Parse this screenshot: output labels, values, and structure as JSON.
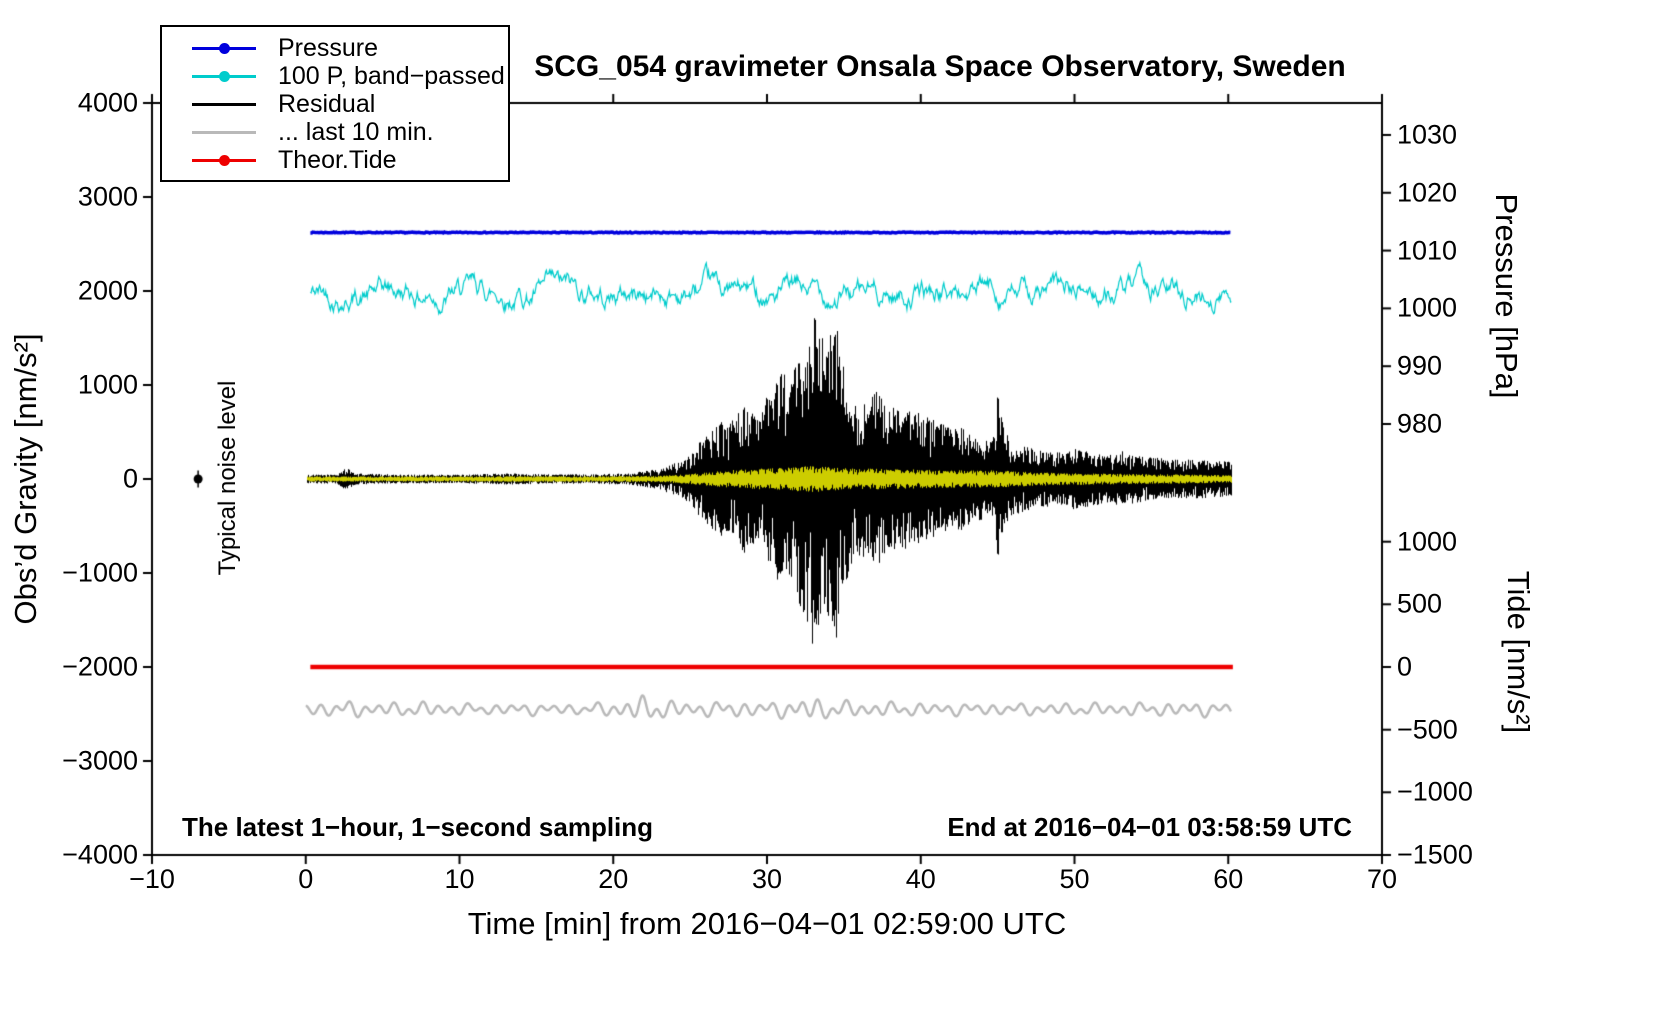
{
  "title": "SCG_054 gravimeter Onsala Space Observatory, Sweden",
  "annotations": {
    "sampling_note": "The latest 1−hour, 1−second sampling",
    "end_note": "End at 2016−04−01 03:58:59 UTC",
    "noise_label": "Typical noise level"
  },
  "legend": {
    "entries": [
      {
        "label": "Pressure",
        "color": "#0000dd",
        "dot": true
      },
      {
        "label": "100 P, band−passed",
        "color": "#00cccc",
        "dot": true
      },
      {
        "label": "Residual",
        "color": "#000000",
        "dot": false
      },
      {
        "label": "... last 10 min.",
        "color": "#b9b9b9",
        "dot": false
      },
      {
        "label": "Theor.Tide",
        "color": "#ee0000",
        "dot": true
      }
    ]
  },
  "chart_data": {
    "type": "line",
    "title": "SCG_054 gravimeter Onsala Space Observatory, Sweden",
    "grid": false,
    "legend_position": "top-left",
    "axes": {
      "x": {
        "label": "Time [min] from 2016−04−01 02:59:00 UTC",
        "min": -10,
        "max": 70,
        "ticks": [
          {
            "label": "−10",
            "value": -10
          },
          {
            "label": "0",
            "value": 0
          },
          {
            "label": "10",
            "value": 10
          },
          {
            "label": "20",
            "value": 20
          },
          {
            "label": "30",
            "value": 30
          },
          {
            "label": "40",
            "value": 40
          },
          {
            "label": "50",
            "value": 50
          },
          {
            "label": "60",
            "value": 60
          },
          {
            "label": "70",
            "value": 70
          }
        ]
      },
      "left": {
        "label": "Obs’d Gravity [nm/s²]",
        "min": -4000,
        "max": 4000,
        "ticks": [
          {
            "label": "4000",
            "value": 4000
          },
          {
            "label": "3000",
            "value": 3000
          },
          {
            "label": "2000",
            "value": 2000
          },
          {
            "label": "1000",
            "value": 1000
          },
          {
            "label": "0",
            "value": 0
          },
          {
            "label": "−1000",
            "value": -1000
          },
          {
            "label": "−2000",
            "value": -2000
          },
          {
            "label": "−3000",
            "value": -3000
          },
          {
            "label": "−4000",
            "value": -4000
          }
        ]
      },
      "right_pressure": {
        "label": "Pressure [hPa]",
        "ticks": [
          {
            "label": "1030",
            "value_hpa": 1030,
            "gravity": 3660
          },
          {
            "label": "1020",
            "value_hpa": 1020,
            "gravity": 3045
          },
          {
            "label": "1010",
            "value_hpa": 1010,
            "gravity": 2430
          },
          {
            "label": "1000",
            "value_hpa": 1000,
            "gravity": 1815
          },
          {
            "label": "990",
            "value_hpa": 990,
            "gravity": 1200
          },
          {
            "label": "980",
            "value_hpa": 980,
            "gravity": 585
          }
        ]
      },
      "right_tide": {
        "label": "Tide [nm/s²]",
        "ticks": [
          {
            "label": "1000",
            "value_tide": 1000,
            "gravity": -667
          },
          {
            "label": "500",
            "value_tide": 500,
            "gravity": -1333
          },
          {
            "label": "0",
            "value_tide": 0,
            "gravity": -2000
          },
          {
            "label": "−500",
            "value_tide": -500,
            "gravity": -2667
          },
          {
            "label": "−1000",
            "value_tide": -1000,
            "gravity": -3333
          },
          {
            "label": "−1500",
            "value_tide": -1500,
            "gravity": -4000
          }
        ]
      }
    },
    "noise_marker": {
      "x": -7,
      "gravity": 0,
      "whisker": 90
    },
    "series": [
      {
        "id": "pressure",
        "label": "Pressure",
        "color": "#0000dd",
        "line_width": 3.5,
        "baseline_gravity": 2622,
        "approx_value_hpa": 1013,
        "noise_amp": 10,
        "x_start": 0.3,
        "x_end": 60.2
      },
      {
        "id": "pressure_bandpassed",
        "label": "100 P, band−passed",
        "color": "#00cccc",
        "line_width": 1.2,
        "baseline_gravity": 1975,
        "typical_amp": 100,
        "spike_amp": 300,
        "x_start": 0.3,
        "x_end": 60.2
      },
      {
        "id": "residual",
        "label": "Residual",
        "color": "#000000",
        "line_width": 1,
        "baseline_gravity": 0,
        "background_noise": 38,
        "x_start": 0.1,
        "x_end": 60.2,
        "envelope": [
          [
            0,
            45
          ],
          [
            2,
            50
          ],
          [
            2.6,
            120
          ],
          [
            3.2,
            60
          ],
          [
            6,
            48
          ],
          [
            10,
            46
          ],
          [
            13,
            60
          ],
          [
            16,
            50
          ],
          [
            19,
            52
          ],
          [
            21,
            65
          ],
          [
            22,
            85
          ],
          [
            23,
            120
          ],
          [
            24,
            170
          ],
          [
            25,
            260
          ],
          [
            25.5,
            380
          ],
          [
            26,
            480
          ],
          [
            26.5,
            560
          ],
          [
            27,
            620
          ],
          [
            27.5,
            570
          ],
          [
            28,
            700
          ],
          [
            28.5,
            800
          ],
          [
            29,
            710
          ],
          [
            29.5,
            660
          ],
          [
            30,
            900
          ],
          [
            30.5,
            1050
          ],
          [
            31,
            1200
          ],
          [
            31.5,
            1020
          ],
          [
            32,
            1300
          ],
          [
            32.5,
            1500
          ],
          [
            33,
            1800
          ],
          [
            33.4,
            1580
          ],
          [
            33.8,
            1420
          ],
          [
            34.2,
            1600
          ],
          [
            34.6,
            1750
          ],
          [
            35,
            1150
          ],
          [
            35.5,
            950
          ],
          [
            36,
            860
          ],
          [
            36.5,
            800
          ],
          [
            37,
            950
          ],
          [
            37.5,
            860
          ],
          [
            38,
            800
          ],
          [
            38.6,
            710
          ],
          [
            39,
            760
          ],
          [
            39.6,
            700
          ],
          [
            40,
            720
          ],
          [
            40.6,
            650
          ],
          [
            41.2,
            600
          ],
          [
            42,
            530
          ],
          [
            42.6,
            560
          ],
          [
            43.2,
            480
          ],
          [
            44,
            430
          ],
          [
            44.6,
            400
          ],
          [
            45,
            920
          ],
          [
            45.4,
            520
          ],
          [
            46,
            390
          ],
          [
            46.6,
            350
          ],
          [
            47.2,
            330
          ],
          [
            48,
            305
          ],
          [
            49,
            285
          ],
          [
            50,
            330
          ],
          [
            50.6,
            300
          ],
          [
            51.4,
            280
          ],
          [
            52.2,
            255
          ],
          [
            53,
            300
          ],
          [
            53.8,
            260
          ],
          [
            54.6,
            240
          ],
          [
            55.4,
            225
          ],
          [
            56.2,
            210
          ],
          [
            57,
            205
          ],
          [
            58,
            210
          ],
          [
            59,
            195
          ],
          [
            60,
            185
          ]
        ]
      },
      {
        "id": "residual_smoothed",
        "label": "band-passed residual (yellow overlay)",
        "color": "#cdcd00",
        "line_width": 1,
        "baseline_gravity": 0,
        "x_start": 0.1,
        "x_end": 60.2,
        "envelope": [
          [
            0,
            28
          ],
          [
            20,
            30
          ],
          [
            23,
            35
          ],
          [
            25,
            55
          ],
          [
            26,
            70
          ],
          [
            27,
            85
          ],
          [
            28,
            100
          ],
          [
            29,
            105
          ],
          [
            30,
            115
          ],
          [
            31,
            120
          ],
          [
            32,
            130
          ],
          [
            33,
            140
          ],
          [
            34,
            130
          ],
          [
            35,
            120
          ],
          [
            36,
            112
          ],
          [
            37,
            110
          ],
          [
            38,
            106
          ],
          [
            39,
            103
          ],
          [
            40,
            100
          ],
          [
            41,
            97
          ],
          [
            42,
            94
          ],
          [
            43,
            92
          ],
          [
            44,
            90
          ],
          [
            45,
            96
          ],
          [
            46,
            82
          ],
          [
            47,
            75
          ],
          [
            48,
            70
          ],
          [
            49,
            67
          ],
          [
            50,
            64
          ],
          [
            51,
            61
          ],
          [
            52,
            58
          ],
          [
            53,
            56
          ],
          [
            54,
            54
          ],
          [
            55,
            52
          ],
          [
            56,
            50
          ],
          [
            57,
            48
          ],
          [
            58,
            46
          ],
          [
            59,
            43
          ],
          [
            60,
            40
          ]
        ]
      },
      {
        "id": "theor_tide",
        "label": "Theor.Tide",
        "color": "#ee0000",
        "line_width": 4.5,
        "baseline_gravity": -2000,
        "tide_value": 0,
        "x_start": 0.3,
        "x_end": 60.3
      },
      {
        "id": "residual_last10",
        "label": "... last 10 min.",
        "color": "#b9b9b9",
        "line_width": 2.5,
        "baseline_gravity": -2450,
        "periods_min": [
          0.95,
          1.62,
          2.73
        ],
        "x_start": 0,
        "x_end": 60.2,
        "envelope": [
          [
            0,
            70
          ],
          [
            2,
            85
          ],
          [
            3,
            95
          ],
          [
            4,
            75
          ],
          [
            6,
            80
          ],
          [
            8,
            85
          ],
          [
            10,
            65
          ],
          [
            12,
            60
          ],
          [
            14,
            68
          ],
          [
            16,
            60
          ],
          [
            18,
            62
          ],
          [
            20,
            85
          ],
          [
            21,
            125
          ],
          [
            22,
            150
          ],
          [
            23,
            125
          ],
          [
            24,
            95
          ],
          [
            25,
            85
          ],
          [
            26,
            80
          ],
          [
            27,
            88
          ],
          [
            28,
            92
          ],
          [
            29,
            85
          ],
          [
            30,
            82
          ],
          [
            31,
            95
          ],
          [
            32,
            115
          ],
          [
            33,
            140
          ],
          [
            34,
            115
          ],
          [
            35,
            95
          ],
          [
            36,
            90
          ],
          [
            37,
            85
          ],
          [
            38,
            82
          ],
          [
            40,
            75
          ],
          [
            42,
            70
          ],
          [
            44,
            68
          ],
          [
            46,
            66
          ],
          [
            48,
            68
          ],
          [
            50,
            70
          ],
          [
            52,
            72
          ],
          [
            54,
            74
          ],
          [
            56,
            78
          ],
          [
            58,
            80
          ],
          [
            60,
            72
          ]
        ]
      }
    ]
  }
}
